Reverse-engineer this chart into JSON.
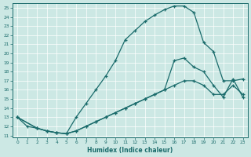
{
  "xlabel": "Humidex (Indice chaleur)",
  "bg_color": "#cce8e4",
  "line_color": "#1a6b6b",
  "xlim": [
    -0.5,
    23.5
  ],
  "ylim": [
    10.8,
    25.5
  ],
  "xticks": [
    0,
    1,
    2,
    3,
    4,
    5,
    6,
    7,
    8,
    9,
    10,
    11,
    12,
    13,
    14,
    15,
    16,
    17,
    18,
    19,
    20,
    21,
    22,
    23
  ],
  "yticks": [
    11,
    12,
    13,
    14,
    15,
    16,
    17,
    18,
    19,
    20,
    21,
    22,
    23,
    24,
    25
  ],
  "line1_x": [
    0,
    1,
    2,
    3,
    4,
    5,
    6,
    7,
    8,
    9,
    10,
    11,
    12,
    13,
    14,
    15,
    16,
    17,
    18,
    19,
    20,
    21,
    22,
    23
  ],
  "line1_y": [
    13,
    12,
    11.8,
    11.5,
    11.3,
    11.2,
    13.0,
    14.5,
    16.0,
    17.5,
    19.2,
    21.5,
    22.5,
    23.5,
    24.2,
    24.8,
    25.2,
    25.2,
    24.5,
    21.2,
    20.2,
    17.0,
    17.0,
    17.2
  ],
  "line2_x": [
    0,
    2,
    3,
    4,
    5,
    6,
    7,
    8,
    9,
    10,
    11,
    12,
    13,
    14,
    15,
    16,
    17,
    18,
    19,
    20,
    21,
    22,
    23
  ],
  "line2_y": [
    13,
    11.8,
    11.5,
    11.3,
    11.2,
    11.5,
    12.0,
    12.5,
    13.0,
    13.5,
    14.0,
    14.5,
    15.0,
    15.5,
    16.0,
    19.2,
    19.5,
    18.5,
    18.0,
    16.5,
    15.2,
    17.2,
    15.2
  ],
  "line3_x": [
    0,
    2,
    3,
    4,
    5,
    6,
    7,
    8,
    9,
    10,
    11,
    12,
    13,
    14,
    15,
    16,
    17,
    18,
    19,
    20,
    21,
    22,
    23
  ],
  "line3_y": [
    13,
    11.8,
    11.5,
    11.3,
    11.2,
    11.5,
    12.0,
    12.5,
    13.0,
    13.5,
    14.0,
    14.5,
    15.0,
    15.5,
    16.0,
    16.5,
    17.0,
    17.0,
    16.5,
    15.5,
    15.5,
    16.5,
    15.5
  ]
}
